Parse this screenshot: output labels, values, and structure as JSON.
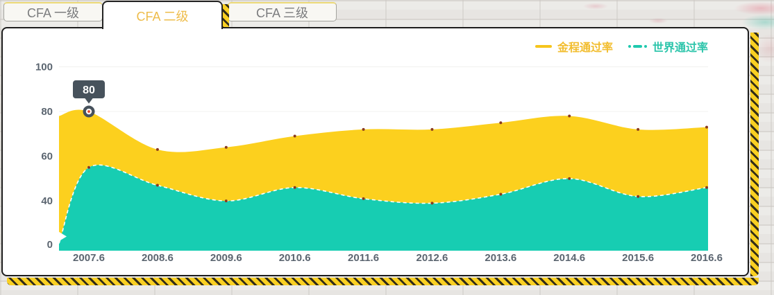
{
  "tabs": [
    {
      "label": "CFA 一级",
      "active": false
    },
    {
      "label": "CFA 二级",
      "active": true
    },
    {
      "label": "CFA 三级",
      "active": false
    }
  ],
  "legend": [
    {
      "label": "金程通过率",
      "color": "#f6c51d",
      "text_color": "#f2bd2e",
      "line_style": "solid"
    },
    {
      "label": "世界通过率",
      "color": "#1fc9ae",
      "text_color": "#2dc5ab",
      "line_style": "dash-dot"
    }
  ],
  "colors": {
    "jincheng_area": "#fcd01e",
    "world_area": "#17cdb2",
    "axis_text": "#5b6570",
    "grid_line": "#f1f1ef",
    "tooltip_bg": "#47525c",
    "tooltip_text": "#ffffff",
    "point_dot": "#8a3a20",
    "marker_center": "#e2462a",
    "hazard_yellow": "#f9d022",
    "tab_active_text": "#eebc4a"
  },
  "tooltip": {
    "value": "80"
  },
  "chart_data": {
    "type": "area",
    "title": "",
    "x_labels": [
      "2007.6",
      "2008.6",
      "2009.6",
      "2010.6",
      "2011.6",
      "2012.6",
      "2013.6",
      "2014.6",
      "2015.6",
      "2016.6"
    ],
    "y_ticks": [
      100,
      80,
      60,
      40,
      0
    ],
    "ylim": [
      0,
      100
    ],
    "y_axis_break": true,
    "grid": true,
    "legend_position": "top-right",
    "series": [
      {
        "name": "金程通过率",
        "color": "#fcd01e",
        "left_edge_value": 78,
        "values": [
          80,
          63,
          64,
          69,
          72,
          72,
          75,
          78,
          72,
          73
        ]
      },
      {
        "name": "世界通过率",
        "color": "#17cdb2",
        "left_edge_value": 21,
        "values": [
          55,
          47,
          40,
          46,
          41,
          39,
          43,
          50,
          42,
          46
        ]
      }
    ],
    "highlight": {
      "series": "金程通过率",
      "x": "2007.6",
      "value": 80
    }
  }
}
